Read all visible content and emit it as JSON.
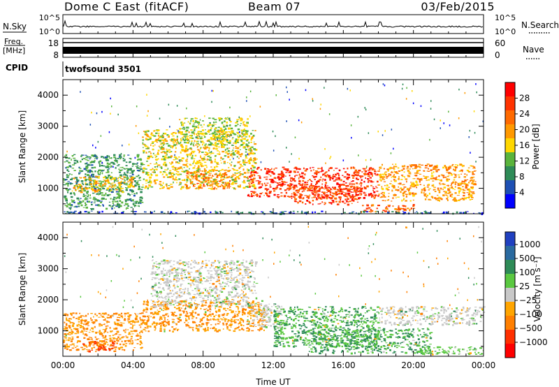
{
  "header": {
    "station": "Dome C East (fitACF)",
    "beam": "Beam 07",
    "date": "03/Feb/2015"
  },
  "top_panels": {
    "nsky_label": "N.Sky",
    "nsky_ticks": [
      "10^5",
      "10^0"
    ],
    "nsearch_label": "N.Search",
    "freq_label_line1": "Freq.",
    "freq_label_line2": "[MHz]",
    "freq_ticks": [
      "18",
      "8"
    ],
    "nave_label": "Nave",
    "nave_ticks": [
      "60",
      "0"
    ],
    "cpid_label": "CPID",
    "cpid_value": "twofsound 3501"
  },
  "colors": {
    "power_scale": [
      "#0000ff",
      "#1e50b4",
      "#2e8b57",
      "#5ab43c",
      "#ffd700",
      "#ff9900",
      "#ff6a00",
      "#ff3300",
      "#ff0000"
    ],
    "velocity_scale": [
      "#2040c0",
      "#2a6aa0",
      "#2e8b57",
      "#5ac840",
      "#c8c8c8",
      "#ffa500",
      "#ff7f00",
      "#ff3000",
      "#ff0000"
    ]
  },
  "chart_data": [
    {
      "type": "heatmap",
      "panel": "power",
      "ylabel": "Slant Range [km]",
      "xlabel": "",
      "xlim": [
        "00:00",
        "24:00"
      ],
      "ylim": [
        180,
        4500
      ],
      "y_ticks": [
        "1000",
        "2000",
        "3000",
        "4000"
      ],
      "colorbar_label": "Power [dB]",
      "colorbar_ticks": [
        "4",
        "8",
        "12",
        "16",
        "20",
        "24",
        "28"
      ],
      "colorbar_range": [
        0,
        32
      ],
      "regions": [
        {
          "t": [
            0.0,
            4.5
          ],
          "r": [
            350,
            2100
          ],
          "value": 10
        },
        {
          "t": [
            0.5,
            4.0
          ],
          "r": [
            900,
            1400
          ],
          "value": 18
        },
        {
          "t": [
            4.5,
            11.0
          ],
          "r": [
            1000,
            2900
          ],
          "value": 16
        },
        {
          "t": [
            6.5,
            10.5
          ],
          "r": [
            2400,
            3300
          ],
          "value": 14
        },
        {
          "t": [
            7.0,
            9.5
          ],
          "r": [
            1000,
            1600
          ],
          "value": 22
        },
        {
          "t": [
            10.5,
            18.0
          ],
          "r": [
            700,
            1700
          ],
          "value": 27
        },
        {
          "t": [
            13.0,
            17.0
          ],
          "r": [
            500,
            1100
          ],
          "value": 26
        },
        {
          "t": [
            18.0,
            23.5
          ],
          "r": [
            600,
            1800
          ],
          "value": 20
        },
        {
          "t": [
            17.0,
            20.0
          ],
          "r": [
            250,
            500
          ],
          "value": 24
        },
        {
          "t": [
            0.0,
            24.0
          ],
          "r": [
            200,
            280
          ],
          "value": 6
        }
      ]
    },
    {
      "type": "heatmap",
      "panel": "velocity",
      "ylabel": "Slant Range [km]",
      "xlabel": "Time UT",
      "xlim": [
        "00:00",
        "24:00"
      ],
      "ylim": [
        180,
        4500
      ],
      "x_ticks": [
        "00:00",
        "04:00",
        "08:00",
        "12:00",
        "16:00",
        "20:00",
        "00:00"
      ],
      "y_ticks": [
        "1000",
        "2000",
        "3000",
        "4000"
      ],
      "colorbar_label": "Velocity [m s⁻¹]",
      "colorbar_ticks": [
        "1000",
        "500",
        "100",
        "25",
        "−25",
        "−100",
        "−500",
        "−1000"
      ],
      "regions": [
        {
          "t": [
            0.0,
            4.5
          ],
          "r": [
            400,
            1600
          ],
          "value": -100
        },
        {
          "t": [
            1.0,
            3.0
          ],
          "r": [
            350,
            700
          ],
          "value": -500
        },
        {
          "t": [
            4.5,
            11.5
          ],
          "r": [
            1000,
            2000
          ],
          "value": -100
        },
        {
          "t": [
            5.0,
            11.0
          ],
          "r": [
            1800,
            3300
          ],
          "value": 0
        },
        {
          "t": [
            10.5,
            12.5
          ],
          "r": [
            1100,
            1900
          ],
          "value": 0
        },
        {
          "t": [
            12.0,
            18.0
          ],
          "r": [
            500,
            1800
          ],
          "value": 100
        },
        {
          "t": [
            14.0,
            21.0
          ],
          "r": [
            300,
            1100
          ],
          "value": 100
        },
        {
          "t": [
            18.0,
            24.0
          ],
          "r": [
            1200,
            1800
          ],
          "value": 0
        },
        {
          "t": [
            20.0,
            24.0
          ],
          "r": [
            250,
            500
          ],
          "value": 50
        }
      ]
    }
  ]
}
